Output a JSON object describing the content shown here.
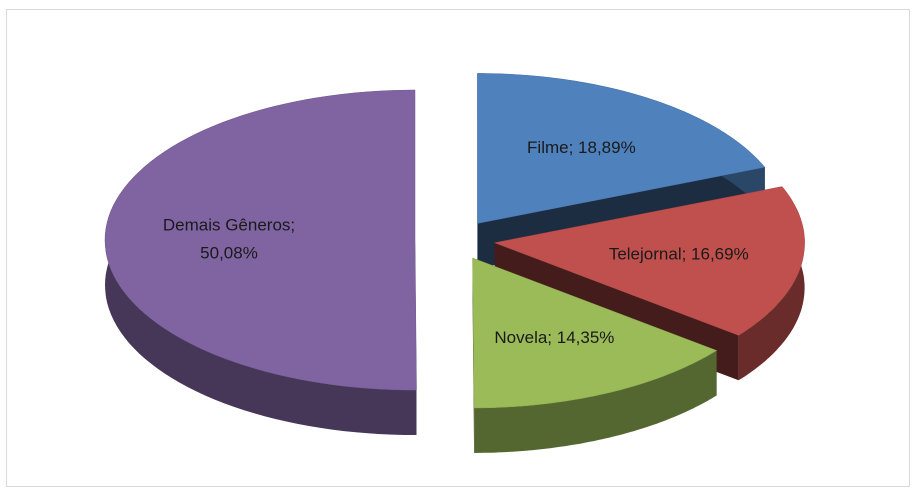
{
  "chart_data": {
    "type": "pie3d",
    "values": [
      18.89,
      16.69,
      14.35,
      50.08
    ],
    "value_labels": [
      "Filme; 18,89%",
      "Telejornal; 16,69%",
      "Novela; 14,35%",
      "Demais Gêneros;\n50,08%"
    ],
    "colors": [
      "#4f81bd",
      "#c0504d",
      "#9bbb59",
      "#8064a2"
    ]
  }
}
